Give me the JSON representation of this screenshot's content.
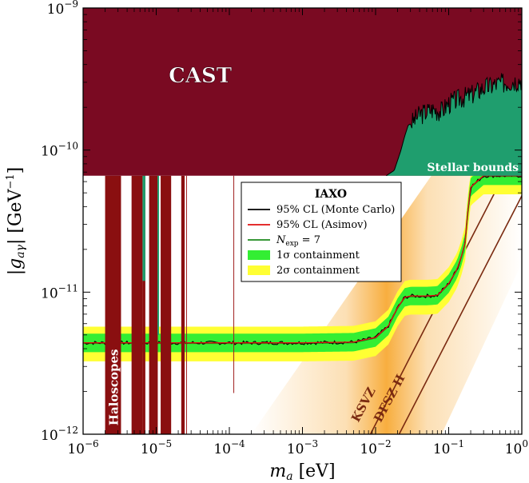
{
  "chart_data": {
    "type": "line",
    "xlabel_main": "m",
    "xlabel_sub": "a",
    "xlabel_unit": " [eV]",
    "ylabel_left": "|g",
    "ylabel_sub": "aγ",
    "ylabel_unit": "| [GeV",
    "ylabel_sup": "−1",
    "ylabel_close": "]",
    "x_scale": "log",
    "y_scale": "log",
    "xlim": [
      1e-06,
      1
    ],
    "ylim": [
      1e-12,
      1e-09
    ],
    "x_ticks": [
      {
        "base": "10",
        "exp": "−6",
        "value": 1e-06
      },
      {
        "base": "10",
        "exp": "−5",
        "value": 1e-05
      },
      {
        "base": "10",
        "exp": "−4",
        "value": 0.0001
      },
      {
        "base": "10",
        "exp": "−3",
        "value": 0.001
      },
      {
        "base": "10",
        "exp": "−2",
        "value": 0.01
      },
      {
        "base": "10",
        "exp": "−1",
        "value": 0.1
      },
      {
        "base": "10",
        "exp": "0",
        "value": 1
      }
    ],
    "y_ticks": [
      {
        "base": "10",
        "exp": "−12",
        "value": 1e-12
      },
      {
        "base": "10",
        "exp": "−11",
        "value": 1e-11
      },
      {
        "base": "10",
        "exp": "−10",
        "value": 1e-10
      },
      {
        "base": "10",
        "exp": "−9",
        "value": 1e-09
      }
    ],
    "regions": {
      "cast_label": "CAST",
      "cast_limit": 6.6e-11,
      "cast_color": "#7a0a22",
      "stellar_label": "Stellar bounds",
      "stellar_color": "#1f9e6e",
      "haloscopes_label": "Haloscopes",
      "haloscopes_color": "#8a0f10",
      "ksvz_label": "KSVZ",
      "dfsz_label": "DFSZ II",
      "model_band_color": "#f7a52a"
    },
    "legend": {
      "title": "IAXO",
      "placement": "upper-right",
      "entries": [
        {
          "label": "95% CL (Monte Carlo)",
          "color": "#000000",
          "kind": "line"
        },
        {
          "label": "95% CL (Asimov)",
          "color": "#e01010",
          "kind": "line"
        },
        {
          "label_main": "N",
          "label_sub": "exp",
          "label_rest": " = 7",
          "color": "#1d8a1d",
          "kind": "line"
        },
        {
          "label": "1σ containment",
          "color": "#33ee33",
          "kind": "band"
        },
        {
          "label": "2σ containment",
          "color": "#ffff33",
          "kind": "band"
        }
      ]
    },
    "series": [
      {
        "name": "95% CL (Asimov)",
        "color": "#e01010",
        "x": [
          1e-06,
          1e-05,
          0.0001,
          0.001,
          0.005,
          0.01,
          0.015,
          0.02,
          0.025,
          0.03,
          0.05,
          0.07,
          0.1,
          0.13,
          0.15,
          0.17,
          0.18,
          0.2,
          0.3,
          1
        ],
        "y": [
          4.4e-12,
          4.4e-12,
          4.4e-12,
          4.4e-12,
          4.45e-12,
          4.8e-12,
          5.8e-12,
          7.8e-12,
          9.2e-12,
          9.4e-12,
          9.4e-12,
          9.5e-12,
          1.15e-11,
          1.45e-11,
          1.8e-11,
          2.3e-11,
          3.5e-11,
          5.5e-11,
          6.6e-11,
          6.6e-11
        ]
      }
    ],
    "bands": {
      "sigma1": {
        "lower_factor": 0.86,
        "upper_factor": 1.16
      },
      "sigma2": {
        "lower_factor": 0.74,
        "upper_factor": 1.3
      }
    },
    "stellar_bounds": {
      "x": [
        0.014,
        0.018,
        0.022,
        0.025,
        0.028,
        0.032,
        0.04,
        0.06,
        0.08,
        0.1,
        0.15,
        0.2,
        0.3,
        0.5,
        1
      ],
      "y": [
        6.6e-11,
        7.2e-11,
        9.8e-11,
        1.25e-10,
        1.5e-10,
        1.55e-10,
        1.75e-10,
        1.9e-10,
        1.85e-10,
        2.1e-10,
        2.3e-10,
        2.4e-10,
        2.7e-10,
        2.9e-10,
        3.1e-10
      ]
    },
    "haloscope_bars": [
      {
        "x0": 2e-06,
        "x1": 3.3e-06
      },
      {
        "x0": 4.6e-06,
        "x1": 6.5e-06
      },
      {
        "x0": 6.5e-06,
        "x1": 7.1e-06
      },
      {
        "x0": 8e-06,
        "x1": 1.05e-05
      },
      {
        "x0": 1.15e-05,
        "x1": 1.6e-05
      },
      {
        "x0": 2.2e-05,
        "x1": 2.45e-05
      }
    ]
  }
}
